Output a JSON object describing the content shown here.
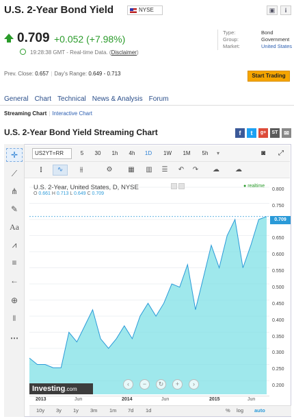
{
  "header": {
    "title": "U.S. 2-Year Bond Yield",
    "exchange": "NYSE",
    "icons": [
      "portfolio-icon",
      "info-icon"
    ]
  },
  "quote": {
    "price": "0.709",
    "change": "+0.052 (+7.98%)",
    "time_text": "19:28:38 GMT - Real-time Data.",
    "time_parens_open": "(",
    "disclaimer": "Disclaimer",
    "time_parens_close": ")",
    "direction_color": "#2a9b2a"
  },
  "meta": [
    {
      "key": "Type:",
      "value": "Bond"
    },
    {
      "key": "Group:",
      "value": "Government"
    },
    {
      "key": "Market:",
      "value": "United States"
    }
  ],
  "stats": {
    "prev_close_label": "Prev. Close:",
    "prev_close": "0.657",
    "range_label": "Day's Range:",
    "range": "0.649 - 0.713"
  },
  "start_trading": "Start Trading",
  "nav_tabs": [
    "General",
    "Chart",
    "Technical",
    "News & Analysis",
    "Forum"
  ],
  "subnav": {
    "active": "Streaming Chart",
    "other": "Interactive Chart"
  },
  "chart_title": "U.S. 2-Year Bond Yield Streaming Chart",
  "share_icons": [
    "facebook-icon",
    "twitter-icon",
    "google-plus-icon",
    "stocktwits-icon",
    "email-icon"
  ],
  "share_glyphs": {
    "fb": "f",
    "tw": "t",
    "gp": "g+",
    "st": "ST",
    "em": "✉"
  },
  "toolbar": {
    "symbol": "US2YT=RR",
    "timeframes": [
      "5",
      "30",
      "1h",
      "4h",
      "1D",
      "1W",
      "1M",
      "5h"
    ],
    "active_timeframe": "1D"
  },
  "legend": {
    "title": "U.S. 2-Year, United States, D, NYSE",
    "o_label": "O",
    "o": "0.661",
    "h_label": "H",
    "h": "0.713",
    "l_label": "L",
    "l": "0.649",
    "c_label": "C",
    "c": "0.709",
    "realtime": "realtime"
  },
  "price_tag": "0.709",
  "logo": {
    "name": "Investing",
    "suffix": ".com"
  },
  "bottom_ranges": [
    "10y",
    "3y",
    "1y",
    "3m",
    "1m",
    "7d",
    "1d"
  ],
  "bottom_right": [
    "%",
    "log",
    "auto"
  ],
  "chart_data": {
    "type": "area",
    "title": "U.S. 2-Year, United States, D, NYSE",
    "xlabel": "",
    "ylabel": "",
    "x_ticks": [
      "2013",
      "Jun",
      "2014",
      "Jun",
      "2015",
      "Jun"
    ],
    "y_ticks": [
      "0.800",
      "0.750",
      "0.700",
      "0.650",
      "0.600",
      "0.550",
      "0.500",
      "0.450",
      "0.400",
      "0.350",
      "0.300",
      "0.250",
      "0.200"
    ],
    "ylim": [
      0.18,
      0.82
    ],
    "current_value": 0.709,
    "line_color": "#2a9ad8",
    "fill_color": "#7fe0e6",
    "series": [
      {
        "x": [
          "2013-01",
          "2013-02",
          "2013-03",
          "2013-04",
          "2013-05",
          "2013-06",
          "2013-07",
          "2013-08",
          "2013-09",
          "2013-10",
          "2013-11",
          "2013-12",
          "2014-01",
          "2014-02",
          "2014-03",
          "2014-04",
          "2014-05",
          "2014-06",
          "2014-07",
          "2014-08",
          "2014-09",
          "2014-10",
          "2014-11",
          "2014-12",
          "2015-01",
          "2015-02",
          "2015-03",
          "2015-04",
          "2015-05",
          "2015-06",
          "2015-07"
        ],
        "values": [
          0.27,
          0.25,
          0.25,
          0.24,
          0.24,
          0.35,
          0.32,
          0.37,
          0.42,
          0.33,
          0.3,
          0.33,
          0.37,
          0.33,
          0.4,
          0.44,
          0.4,
          0.44,
          0.5,
          0.49,
          0.56,
          0.42,
          0.52,
          0.62,
          0.55,
          0.65,
          0.7,
          0.55,
          0.62,
          0.7,
          0.709
        ]
      }
    ]
  }
}
